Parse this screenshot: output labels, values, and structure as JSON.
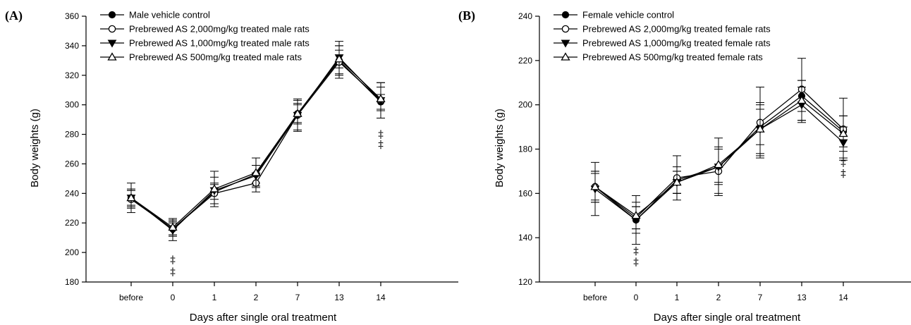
{
  "chart_data": [
    {
      "type": "line",
      "panel_label": "(A)",
      "xlabel": "Days after single oral treatment",
      "ylabel": "Body weights (g)",
      "categories": [
        "before",
        "0",
        "1",
        "2",
        "7",
        "13",
        "14"
      ],
      "ylim": [
        180,
        360
      ],
      "yticks": [
        180,
        200,
        220,
        240,
        260,
        280,
        300,
        320,
        340,
        360
      ],
      "legend_position": "top-left",
      "grid": false,
      "series": [
        {
          "name": "Male vehicle control",
          "marker": "filled-circle",
          "values": [
            237,
            216,
            241,
            253,
            294,
            330,
            302
          ],
          "errors": [
            5,
            4,
            5,
            6,
            6,
            10,
            5
          ]
        },
        {
          "name": "Prebrewed AS 2,000mg/kg treated male rats",
          "marker": "open-circle",
          "values": [
            236,
            216,
            240,
            247,
            293,
            329,
            303
          ],
          "errors": [
            6,
            5,
            7,
            6,
            11,
            11,
            12
          ]
        },
        {
          "name": "Prebrewed AS 1,000mg/kg treated male rats",
          "marker": "filled-triangle-down",
          "values": [
            237,
            215,
            242,
            252,
            293,
            332,
            303
          ],
          "errors": [
            10,
            7,
            9,
            7,
            10,
            11,
            12
          ]
        },
        {
          "name": "Prebrewed AS 500mg/kg treated male rats",
          "marker": "open-triangle-up",
          "values": [
            237,
            217,
            243,
            254,
            294,
            331,
            304
          ],
          "errors": [
            6,
            6,
            12,
            10,
            7,
            6,
            8
          ]
        }
      ],
      "annotations": [
        {
          "text": "‡",
          "x": "0",
          "y": 195
        },
        {
          "text": "‡",
          "x": "0",
          "y": 187
        },
        {
          "text": "‡",
          "x": "14",
          "y": 280
        },
        {
          "text": "‡",
          "x": "14",
          "y": 273
        }
      ]
    },
    {
      "type": "line",
      "panel_label": "(B)",
      "xlabel": "Days after single oral treatment",
      "ylabel": "Body weights (g)",
      "categories": [
        "before",
        "0",
        "1",
        "2",
        "7",
        "13",
        "14"
      ],
      "ylim": [
        120,
        240
      ],
      "yticks": [
        120,
        140,
        160,
        180,
        200,
        220,
        240
      ],
      "legend_position": "top-left",
      "grid": false,
      "series": [
        {
          "name": "Female vehicle control",
          "marker": "filled-circle",
          "values": [
            163,
            148,
            166,
            172,
            190,
            204,
            188
          ],
          "errors": [
            7,
            6,
            6,
            13,
            8,
            7,
            7
          ]
        },
        {
          "name": "Prebrewed AS 2,000mg/kg treated female rats",
          "marker": "open-circle",
          "values": [
            163,
            149,
            167,
            170,
            192,
            207,
            189
          ],
          "errors": [
            6,
            5,
            10,
            10,
            16,
            14,
            14
          ]
        },
        {
          "name": "Prebrewed AS 1,000mg/kg treated female rats",
          "marker": "filled-triangle-down",
          "values": [
            162,
            148,
            165,
            172,
            189,
            200,
            183
          ],
          "errors": [
            12,
            11,
            5,
            8,
            12,
            8,
            7
          ]
        },
        {
          "name": "Prebrewed AS 500mg/kg treated female rats",
          "marker": "open-triangle-up",
          "values": [
            163,
            150,
            165,
            173,
            189,
            202,
            187
          ],
          "errors": [
            7,
            6,
            5,
            8,
            11,
            9,
            8
          ]
        }
      ],
      "annotations": [
        {
          "text": "‡",
          "x": "0",
          "y": 134
        },
        {
          "text": "‡",
          "x": "0",
          "y": 129
        },
        {
          "text": "‡",
          "x": "14",
          "y": 174
        },
        {
          "text": "‡",
          "x": "14",
          "y": 169
        }
      ]
    }
  ],
  "colors": {
    "ink": "#000000",
    "background": "#ffffff"
  }
}
